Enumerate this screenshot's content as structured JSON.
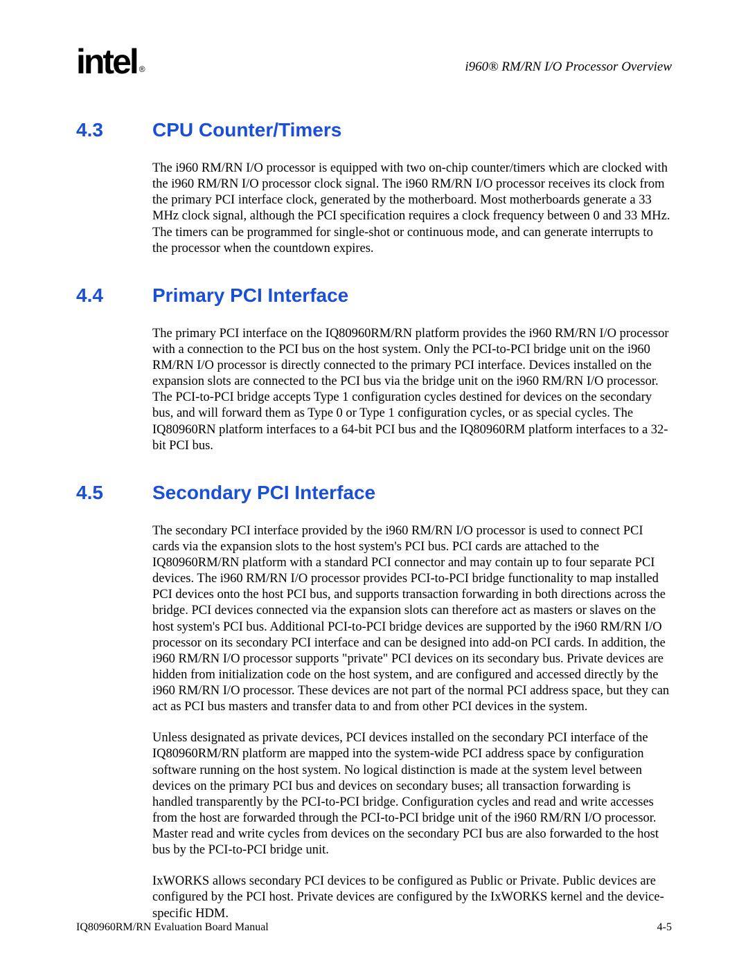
{
  "colors": {
    "heading": "#1a4fd6",
    "text": "#000000",
    "background": "#ffffff"
  },
  "typography": {
    "heading_font": "Arial",
    "heading_size_pt": 21,
    "heading_weight": 700,
    "body_font": "Times New Roman",
    "body_size_pt": 14,
    "chapter_title_style": "italic"
  },
  "header": {
    "logo_text": "intel",
    "logo_reg": "®",
    "chapter_title": "i960® RM/RN I/O Processor Overview"
  },
  "sections": [
    {
      "num": "4.3",
      "title": "CPU Counter/Timers",
      "paragraphs": [
        "The i960 RM/RN I/O processor is equipped with two on-chip counter/timers which are clocked with the i960 RM/RN I/O processor clock signal. The i960 RM/RN I/O processor receives its clock from the primary PCI interface clock, generated by the motherboard. Most motherboards generate a 33 MHz clock signal, although the PCI specification requires a clock frequency between 0 and 33 MHz. The timers can be programmed for single-shot or continuous mode, and can generate interrupts to the processor when the countdown expires."
      ]
    },
    {
      "num": "4.4",
      "title": "Primary PCI Interface",
      "paragraphs": [
        "The primary PCI interface on the IQ80960RM/RN platform provides the i960 RM/RN I/O processor with a connection to the PCI bus on the host system. Only the PCI-to-PCI bridge unit on the i960 RM/RN I/O processor is directly connected to the primary PCI interface. Devices installed on the expansion slots are connected to the PCI bus via the bridge unit on the i960 RM/RN I/O processor. The PCI-to-PCI bridge accepts Type 1 configuration cycles destined for devices on the secondary bus, and will forward them as Type 0 or Type 1 configuration cycles, or as special cycles. The IQ80960RN platform interfaces to a 64-bit PCI bus and the IQ80960RM platform interfaces to a 32-bit PCI bus."
      ]
    },
    {
      "num": "4.5",
      "title": "Secondary PCI Interface",
      "paragraphs": [
        "The secondary PCI interface provided by the i960 RM/RN I/O processor is used to connect PCI cards via the expansion slots to the host system's PCI bus. PCI cards are attached to the IQ80960RM/RN platform with a standard PCI connector and may contain up to four separate PCI devices. The i960 RM/RN I/O processor provides PCI-to-PCI bridge functionality to map installed PCI devices onto the host PCI bus, and supports transaction forwarding in both directions across the bridge. PCI devices connected via the expansion slots can therefore act as masters or slaves on the host system's PCI bus. Additional PCI-to-PCI bridge devices are supported by the i960 RM/RN I/O processor on its secondary PCI interface and can be designed into add-on PCI cards. In addition, the i960 RM/RN I/O processor supports \"private\" PCI devices on its secondary bus. Private devices are hidden from initialization code on the host system, and are configured and accessed directly by the i960 RM/RN I/O processor. These devices are not part of the normal PCI address space, but they can act as PCI bus masters and transfer data to and from other PCI devices in the system.",
        "Unless designated as private devices, PCI devices installed on the secondary PCI interface of the IQ80960RM/RN platform are mapped into the system-wide PCI address space by configuration software running on the host system. No logical distinction is made at the system level between devices on the primary PCI bus and devices on secondary buses; all transaction forwarding is handled transparently by the PCI-to-PCI bridge. Configuration cycles and read and write accesses from the host are forwarded through the PCI-to-PCI bridge unit of the i960 RM/RN I/O processor. Master read and write cycles from devices on the secondary PCI bus are also forwarded to the host bus by the PCI-to-PCI bridge unit.",
        "IxWORKS allows secondary PCI devices to be configured as Public or Private. Public devices are configured by the PCI host. Private devices are configured by the IxWORKS kernel and the device-specific HDM."
      ]
    }
  ],
  "footer": {
    "left": "IQ80960RM/RN Evaluation Board Manual",
    "right": "4-5"
  }
}
